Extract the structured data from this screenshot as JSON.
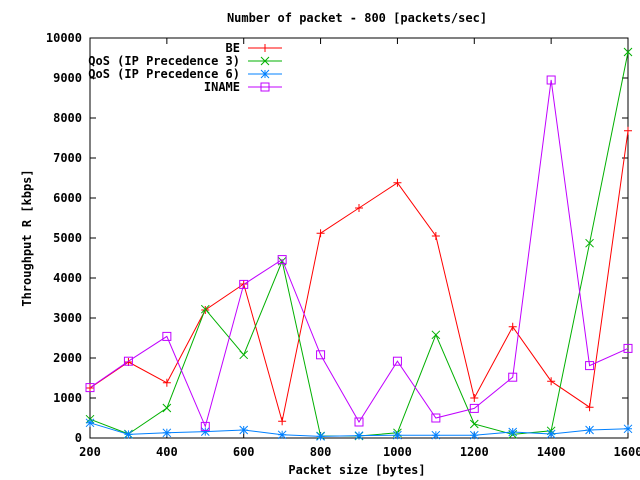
{
  "chart_data": {
    "type": "line",
    "title": "Number of packet - 800 [packets/sec]",
    "xlabel": "Packet size [bytes]",
    "ylabel": "Throughput R [kbps]",
    "xlim": [
      200,
      1600
    ],
    "ylim": [
      0,
      10000
    ],
    "xticks": [
      200,
      400,
      600,
      800,
      1000,
      1200,
      1400,
      1600
    ],
    "yticks": [
      0,
      1000,
      2000,
      3000,
      4000,
      5000,
      6000,
      7000,
      8000,
      9000,
      10000
    ],
    "grid": false,
    "legend_position": "top-right",
    "x": [
      200,
      300,
      400,
      500,
      600,
      700,
      800,
      900,
      1000,
      1100,
      1200,
      1300,
      1400,
      1500,
      1600
    ],
    "series": [
      {
        "name": "BE",
        "color": "#ff0000",
        "marker": "plus",
        "values": [
          1250,
          1900,
          1380,
          3200,
          3850,
          420,
          5120,
          5750,
          6380,
          5050,
          1000,
          2780,
          1420,
          770,
          7680
        ]
      },
      {
        "name": "QoS (IP Precedence 3)",
        "color": "#00b000",
        "marker": "cross",
        "values": [
          470,
          100,
          750,
          3220,
          2080,
          4420,
          50,
          50,
          130,
          2580,
          350,
          90,
          180,
          4870,
          9650
        ]
      },
      {
        "name": "QoS (IP Precedence 6)",
        "color": "#0080ff",
        "marker": "star",
        "values": [
          380,
          90,
          130,
          160,
          200,
          80,
          40,
          60,
          70,
          70,
          70,
          150,
          100,
          200,
          230
        ]
      },
      {
        "name": "INAME",
        "color": "#c000ff",
        "marker": "box",
        "values": [
          1260,
          1920,
          2540,
          290,
          3840,
          4460,
          2080,
          400,
          1920,
          500,
          740,
          1520,
          8950,
          1810,
          2240
        ]
      }
    ]
  }
}
